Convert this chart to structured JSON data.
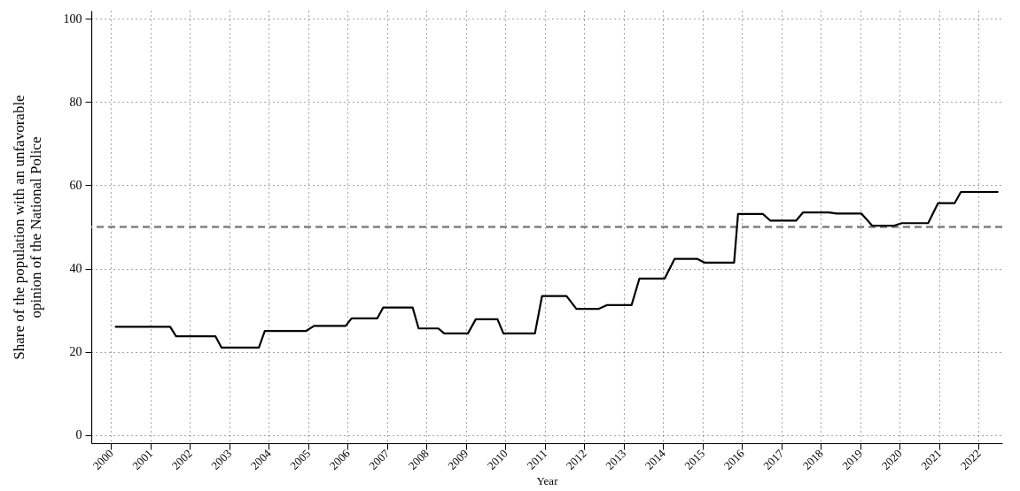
{
  "chart_data": {
    "type": "line",
    "xlabel": "Year",
    "ylabel": "Share of the population with an unfavorable opinion of the National Police",
    "series": [
      {
        "color": "#000000",
        "x": [
          2000.1,
          2001.5,
          2001.65,
          2002.65,
          2002.8,
          2003.75,
          2003.9,
          2004.95,
          2005.15,
          2005.95,
          2006.1,
          2006.75,
          2006.9,
          2007.65,
          2007.8,
          2008.3,
          2008.45,
          2009.05,
          2009.25,
          2009.8,
          2009.95,
          2010.75,
          2010.93,
          2011.55,
          2011.8,
          2012.36,
          2012.57,
          2013.2,
          2013.4,
          2014.04,
          2014.29,
          2014.87,
          2015.06,
          2015.8,
          2015.9,
          2016.53,
          2016.72,
          2017.37,
          2017.55,
          2018.2,
          2018.4,
          2019.03,
          2019.3,
          2019.86,
          2020.05,
          2020.72,
          2020.97,
          2021.39,
          2021.55,
          2022.5
        ],
        "values": [
          26,
          26,
          23.7,
          23.7,
          21,
          21,
          25,
          25,
          26.2,
          26.2,
          28,
          28,
          30.6,
          30.6,
          25.6,
          25.6,
          24.4,
          24.4,
          27.8,
          27.8,
          24.4,
          24.4,
          33.4,
          33.4,
          30.3,
          30.3,
          31.2,
          31.2,
          37.6,
          37.6,
          42.3,
          42.3,
          41.4,
          41.4,
          53.1,
          53.1,
          51.5,
          51.5,
          53.5,
          53.5,
          53.2,
          53.2,
          50.3,
          50.3,
          50.9,
          50.9,
          55.7,
          55.7,
          58.4,
          58.4
        ]
      }
    ],
    "xlim": [
      1999.5,
      2022.6
    ],
    "xticks": [
      2000,
      2001,
      2002,
      2003,
      2004,
      2005,
      2006,
      2007,
      2008,
      2009,
      2010,
      2011,
      2012,
      2013,
      2014,
      2015,
      2016,
      2017,
      2018,
      2019,
      2020,
      2021,
      2022
    ],
    "ylim": [
      -2,
      102
    ],
    "yticks": [
      0,
      20,
      40,
      60,
      80,
      100
    ],
    "ref_lines": [
      {
        "axis": "y",
        "value": 50,
        "color": "#808080",
        "line_style": "dashed"
      }
    ],
    "grid": true,
    "line_style": "solid",
    "marker": "none"
  }
}
